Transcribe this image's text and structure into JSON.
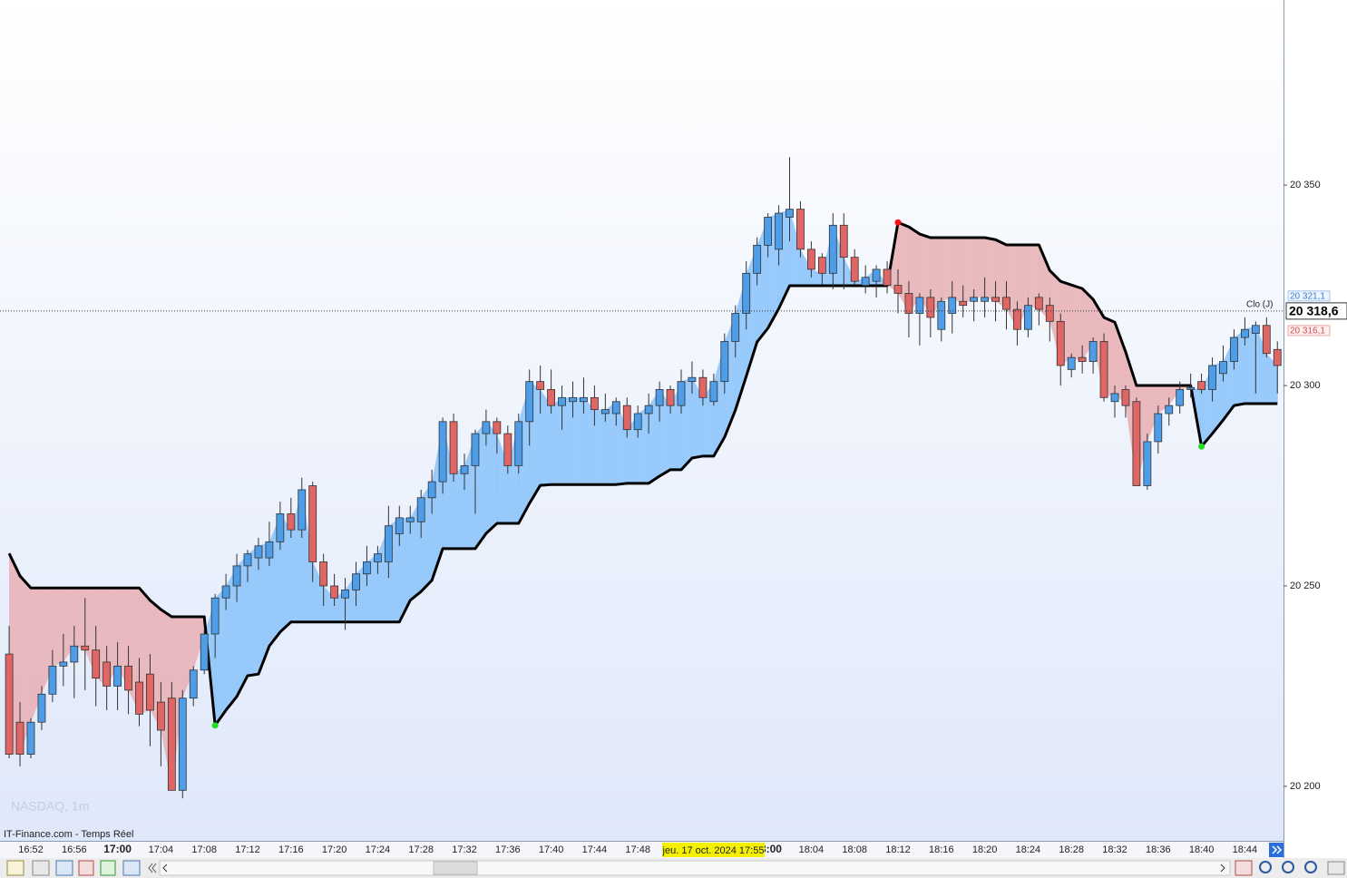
{
  "chart_data": {
    "type": "candlestick",
    "title": "NASDAQ, 1m",
    "source": "IT-Finance.com - Temps Réel",
    "cursor_label": "jeu. 17 oct. 2024 17:55",
    "close_label": "Clo (J)",
    "categories": [
      null,
      null,
      "16:52",
      null,
      null,
      null,
      "16:56",
      null,
      null,
      null,
      "17:00",
      null,
      null,
      null,
      "17:04",
      null,
      null,
      null,
      "17:08",
      null,
      null,
      null,
      "17:12",
      null,
      null,
      null,
      "17:16",
      null,
      null,
      null,
      "17:20",
      null,
      null,
      null,
      "17:24",
      null,
      null,
      null,
      "17:28",
      null,
      null,
      null,
      "17:32",
      null,
      null,
      null,
      "17:36",
      null,
      null,
      null,
      "17:40",
      null,
      null,
      null,
      "17:44",
      null,
      null,
      null,
      "17:48",
      null,
      null,
      null,
      null,
      null,
      null,
      null,
      null,
      null,
      null,
      null,
      "18:00",
      null,
      null,
      null,
      "18:04",
      null,
      null,
      null,
      "18:08",
      null,
      null,
      null,
      "18:12",
      null,
      null,
      null,
      "18:16",
      null,
      null,
      null,
      "18:20",
      null,
      null,
      null,
      "18:24",
      null,
      null,
      null,
      "18:28",
      null,
      null,
      null,
      "18:32",
      null,
      null,
      null,
      "18:36",
      null,
      null,
      null,
      "18:40",
      null,
      null,
      null,
      "18:44",
      null,
      null,
      null
    ],
    "open": [
      20233,
      20216,
      20208,
      20216,
      20223,
      20230,
      20231,
      20235,
      20234,
      20231,
      20225,
      20230,
      20226,
      20228,
      20221,
      20222,
      20199,
      20222,
      20229,
      20238,
      20247,
      20250,
      20255,
      20257,
      20257,
      20261,
      20268,
      20264,
      20275,
      20256,
      20250,
      20247,
      20249,
      20253,
      20256,
      20256,
      20263,
      20266,
      20266,
      20272,
      20276,
      20291,
      20278,
      20280,
      20288,
      20291,
      20288,
      20280,
      20291,
      20301,
      20299,
      20295,
      20296,
      20296,
      20297,
      20293,
      20293,
      20295,
      20289,
      20293,
      20295,
      20299,
      20295,
      20301,
      20302,
      20296,
      20301,
      20311,
      20318,
      20328,
      20335,
      20334,
      20342,
      20344,
      20334,
      20332,
      20328,
      20340,
      20332,
      20325,
      20326,
      20329,
      20325,
      20323,
      20318,
      20322,
      20314,
      20318,
      20321,
      20321,
      20321,
      20322,
      20322,
      20319,
      20314,
      20322,
      20320,
      20316,
      20304,
      20307,
      20306,
      20311,
      20296,
      20299,
      20296,
      20275,
      20286,
      20293,
      20295,
      20299,
      20301,
      20299,
      20303,
      20306,
      20312,
      20313,
      20315,
      20309
    ],
    "high": [
      20240,
      20221,
      20217,
      20225,
      20234,
      20238,
      20240,
      20247,
      20240,
      20235,
      20236,
      20235,
      20232,
      20233,
      20226,
      20226,
      20224,
      20230,
      20239,
      20248,
      20253,
      20258,
      20259,
      20262,
      20266,
      20271,
      20272,
      20277,
      20276,
      20258,
      20253,
      20252,
      20256,
      20260,
      20260,
      20270,
      20270,
      20270,
      20274,
      20279,
      20292,
      20293,
      20283,
      20289,
      20294,
      20292,
      20290,
      20293,
      20304,
      20305,
      20304,
      20300,
      20301,
      20302,
      20300,
      20298,
      20297,
      20297,
      20295,
      20298,
      20301,
      20300,
      20304,
      20306,
      20304,
      20303,
      20313,
      20320,
      20331,
      20337,
      20343,
      20345,
      20357,
      20346,
      20336,
      20333,
      20343,
      20343,
      20334,
      20330,
      20330,
      20331,
      20329,
      20326,
      20323,
      20324,
      20322,
      20326,
      20325,
      20324,
      20327,
      20326,
      20326,
      20321,
      20322,
      20323,
      20322,
      20318,
      20308,
      20310,
      20312,
      20313,
      20300,
      20300,
      20297,
      20288,
      20295,
      20297,
      20301,
      20303,
      20303,
      20307,
      20310,
      20314,
      20317,
      20316,
      20317,
      20311
    ],
    "low": [
      20207,
      20205,
      20207,
      20214,
      20221,
      20225,
      20222,
      20224,
      20220,
      20219,
      20219,
      20218,
      20215,
      20210,
      20205,
      20199,
      20197,
      20220,
      20228,
      20232,
      20244,
      20246,
      20251,
      20254,
      20255,
      20259,
      20262,
      20262,
      20251,
      20245,
      20245,
      20239,
      20245,
      20250,
      20253,
      20252,
      20260,
      20263,
      20262,
      20268,
      20273,
      20276,
      20274,
      20268,
      20285,
      20283,
      20278,
      20278,
      20285,
      20293,
      20293,
      20289,
      20292,
      20293,
      20290,
      20291,
      20290,
      20287,
      20287,
      20288,
      20291,
      20293,
      20293,
      20298,
      20295,
      20295,
      20298,
      20307,
      20314,
      20325,
      20332,
      20330,
      20336,
      20332,
      20327,
      20325,
      20324,
      20324,
      20325,
      20323,
      20322,
      20323,
      20318,
      20312,
      20310,
      20312,
      20311,
      20313,
      20317,
      20316,
      20317,
      20316,
      20314,
      20310,
      20312,
      20315,
      20311,
      20300,
      20302,
      20303,
      20303,
      20296,
      20292,
      20292,
      20275,
      20274,
      20283,
      20290,
      20293,
      20297,
      20298,
      20296,
      20301,
      20304,
      20310,
      20298,
      20307,
      20298
    ],
    "close": [
      20208,
      20208,
      20216,
      20223,
      20230,
      20231,
      20235,
      20234,
      20227,
      20225,
      20230,
      20224,
      20218,
      20219,
      20214,
      20199,
      20222,
      20229,
      20238,
      20247,
      20250,
      20255,
      20258,
      20260,
      20261,
      20268,
      20264,
      20274,
      20256,
      20250,
      20247,
      20249,
      20253,
      20256,
      20258,
      20265,
      20267,
      20267,
      20272,
      20276,
      20291,
      20278,
      20280,
      20288,
      20291,
      20288,
      20280,
      20291,
      20301,
      20299,
      20295,
      20297,
      20297,
      20297,
      20294,
      20294,
      20296,
      20289,
      20293,
      20295,
      20299,
      20295,
      20301,
      20302,
      20297,
      20301,
      20311,
      20318,
      20328,
      20335,
      20342,
      20343,
      20344,
      20334,
      20329,
      20328,
      20340,
      20332,
      20326,
      20327,
      20329,
      20325,
      20323,
      20318,
      20322,
      20317,
      20321,
      20322,
      20320,
      20322,
      20322,
      20321,
      20319,
      20314,
      20320,
      20319,
      20316,
      20305,
      20307,
      20306,
      20311,
      20297,
      20298,
      20295,
      20275,
      20286,
      20293,
      20295,
      20299,
      20299.5,
      20299,
      20305,
      20306,
      20312,
      20314,
      20315,
      20308,
      20305
    ],
    "up_color": "#4d9de8",
    "down_color": "#e06666",
    "stop": {
      "color": "#000000",
      "up_fill": "#8ec5fb",
      "down_fill": "#e8b3b7",
      "up_signal": "#22dd22",
      "down_signal": "#ff1010",
      "values": [
        20258.1,
        20252.5,
        20249.5,
        20249.5,
        20249.5,
        20249.5,
        20249.5,
        20249.5,
        20249.5,
        20249.5,
        20249.5,
        20249.5,
        20249.5,
        20246.4,
        20244.1,
        20242.3,
        20242.3,
        20242.3,
        20242.3,
        20215.2,
        20219,
        20222.4,
        20227.6,
        20228,
        20235,
        20238.5,
        20241,
        20241,
        20241,
        20241,
        20241,
        20241,
        20241,
        20241,
        20241,
        20241,
        20241,
        20246.4,
        20248.6,
        20251.4,
        20259.3,
        20259.3,
        20259.3,
        20259.3,
        20263.1,
        20265.6,
        20265.6,
        20265.6,
        20270.6,
        20275.1,
        20275.3,
        20275.3,
        20275.3,
        20275.3,
        20275.3,
        20275.3,
        20275.3,
        20275.6,
        20275.6,
        20275.6,
        20277.4,
        20279,
        20279,
        20281.9,
        20282.4,
        20282.4,
        20287.1,
        20293.9,
        20302.3,
        20310.9,
        20314.3,
        20319.2,
        20324.9,
        20324.9,
        20324.9,
        20324.9,
        20324.9,
        20324.9,
        20324.9,
        20324.9,
        20324.9,
        20324.9,
        20340.7,
        20339.6,
        20337.8,
        20336.9,
        20336.9,
        20336.9,
        20336.9,
        20336.9,
        20336.9,
        20336.4,
        20335.1,
        20335.1,
        20335.1,
        20335.1,
        20328.7,
        20326,
        20325.1,
        20324.2,
        20321.5,
        20317,
        20315.8,
        20308.4,
        20300,
        20300,
        20300,
        20300,
        20300,
        20300,
        20284.8,
        20288,
        20291.4,
        20295,
        20295.5,
        20295.5,
        20295.5,
        20295.5
      ]
    },
    "last_price": {
      "value": 20318.6,
      "label": "20 318,6"
    },
    "ask": {
      "value": 20321.1,
      "label": "20 321,1"
    },
    "bid": {
      "value": 20316.1,
      "label": "20 316,1"
    },
    "ylim": [
      20186.4,
      20396.2
    ],
    "yticks": [
      {
        "value": 20200,
        "label": "20 200"
      },
      {
        "value": 20250,
        "label": "20 250"
      },
      {
        "value": 20300,
        "label": "20 300"
      },
      {
        "value": 20350,
        "label": "20 350"
      }
    ]
  }
}
